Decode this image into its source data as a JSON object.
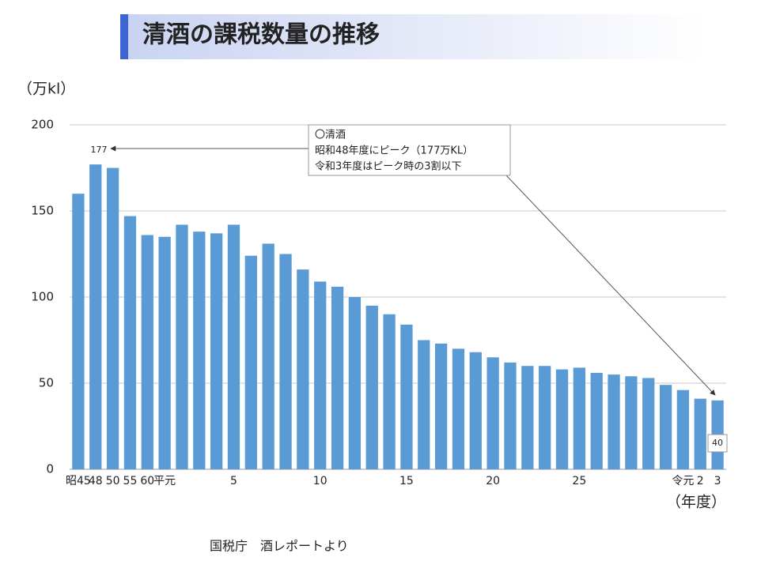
{
  "chart_data": {
    "type": "bar",
    "title": "清酒の課税数量の推移",
    "y_unit": "（万kl）",
    "x_unit": "（年度）",
    "annotation": [
      "〇清酒",
      "昭和48年度にピーク（177万KL）",
      "令和3年度はピーク時の3割以下"
    ],
    "source": "国税庁　酒レポートより",
    "categories": [
      "昭45",
      "48",
      "50",
      "55",
      "60",
      "平元",
      null,
      null,
      null,
      "5",
      null,
      null,
      null,
      null,
      "10",
      null,
      null,
      null,
      null,
      "15",
      null,
      null,
      null,
      null,
      "20",
      null,
      null,
      null,
      null,
      "25",
      null,
      null,
      null,
      null,
      null,
      "令元",
      "2",
      "3"
    ],
    "values": [
      160,
      177,
      175,
      147,
      136,
      135,
      142,
      138,
      137,
      142,
      124,
      131,
      125,
      116,
      109,
      106,
      100,
      95,
      90,
      84,
      75,
      73,
      70,
      68,
      65,
      62,
      60,
      60,
      58,
      59,
      56,
      55,
      54,
      53,
      49,
      46,
      41,
      40
    ],
    "color": "#5b9bd5",
    "ylim": [
      0,
      200
    ],
    "yticks": [
      0,
      50,
      100,
      150,
      200
    ],
    "grid": true
  }
}
